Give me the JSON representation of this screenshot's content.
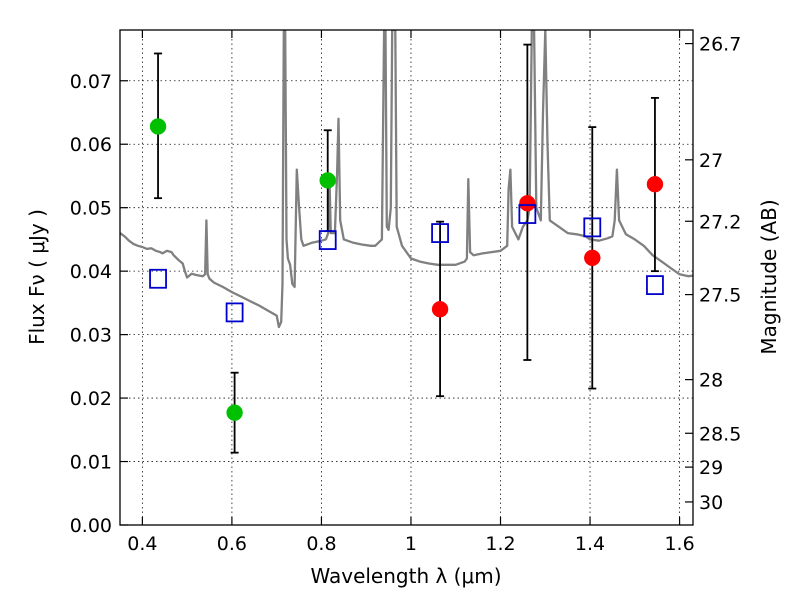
{
  "chart_data": {
    "type": "scatter",
    "xlabel": "Wavelength  λ (μm)",
    "ylabel": "Flux  Fν  ( μJy )",
    "ylabel_right": "Magnitude (AB)",
    "xlim": [
      0.35,
      1.63
    ],
    "ylim": [
      0.0,
      0.078
    ],
    "x_ticks": [
      0.4,
      0.6,
      0.8,
      1.0,
      1.2,
      1.4,
      1.6
    ],
    "x_tick_labels": [
      "0.4",
      "0.6",
      "0.8",
      "1",
      "1.2",
      "1.4",
      "1.6"
    ],
    "y_ticks": [
      0.0,
      0.01,
      0.02,
      0.03,
      0.04,
      0.05,
      0.06,
      0.07
    ],
    "y_tick_labels": [
      "0.00",
      "0.01",
      "0.02",
      "0.03",
      "0.04",
      "0.05",
      "0.06",
      "0.07"
    ],
    "right_ticks": [
      {
        "mag": 26.7,
        "label": "26.7"
      },
      {
        "mag": 27,
        "label": "27"
      },
      {
        "mag": 27.2,
        "label": "27.2"
      },
      {
        "mag": 27.5,
        "label": "27.5"
      },
      {
        "mag": 28,
        "label": "28"
      },
      {
        "mag": 28.5,
        "label": "28.5"
      },
      {
        "mag": 29,
        "label": "29"
      },
      {
        "mag": 30,
        "label": "30"
      }
    ],
    "grid": true,
    "colors": {
      "green_points": "#00c000",
      "red_points": "#ff0000",
      "model_boxes": "#0000cc",
      "spectrum": "#808080",
      "errorbars": "#000000"
    },
    "series": [
      {
        "marker": "circle",
        "color": "green",
        "points": [
          {
            "x": 0.435,
            "y": 0.0628,
            "yerr_low": 0.0515,
            "yerr_high": 0.0743
          },
          {
            "x": 0.606,
            "y": 0.0177,
            "yerr_low": 0.0114,
            "yerr_high": 0.024
          },
          {
            "x": 0.814,
            "y": 0.0543,
            "yerr_low": 0.0463,
            "yerr_high": 0.0622
          }
        ]
      },
      {
        "marker": "circle",
        "color": "red",
        "points": [
          {
            "x": 1.065,
            "y": 0.034,
            "yerr_low": 0.0203,
            "yerr_high": 0.0478
          },
          {
            "x": 1.26,
            "y": 0.0507,
            "yerr_low": 0.026,
            "yerr_high": 0.0757
          },
          {
            "x": 1.405,
            "y": 0.0421,
            "yerr_low": 0.0215,
            "yerr_high": 0.0627
          },
          {
            "x": 1.545,
            "y": 0.0537,
            "yerr_low": 0.04,
            "yerr_high": 0.0673
          }
        ]
      },
      {
        "marker": "open-square",
        "color": "blue",
        "points": [
          {
            "x": 0.435,
            "y": 0.0388
          },
          {
            "x": 0.606,
            "y": 0.0335
          },
          {
            "x": 0.814,
            "y": 0.0449
          },
          {
            "x": 1.065,
            "y": 0.046
          },
          {
            "x": 1.26,
            "y": 0.049
          },
          {
            "x": 1.405,
            "y": 0.0469
          },
          {
            "x": 1.545,
            "y": 0.0378
          }
        ]
      }
    ],
    "spectrum": [
      [
        0.35,
        0.046
      ],
      [
        0.36,
        0.0455
      ],
      [
        0.37,
        0.0448
      ],
      [
        0.38,
        0.0443
      ],
      [
        0.39,
        0.044
      ],
      [
        0.4,
        0.0438
      ],
      [
        0.41,
        0.0435
      ],
      [
        0.42,
        0.0436
      ],
      [
        0.43,
        0.0432
      ],
      [
        0.44,
        0.043
      ],
      [
        0.445,
        0.0428
      ],
      [
        0.455,
        0.0432
      ],
      [
        0.465,
        0.043
      ],
      [
        0.47,
        0.0425
      ],
      [
        0.48,
        0.0418
      ],
      [
        0.49,
        0.0412
      ],
      [
        0.495,
        0.04
      ],
      [
        0.5,
        0.039
      ],
      [
        0.51,
        0.0396
      ],
      [
        0.52,
        0.0394
      ],
      [
        0.535,
        0.0392
      ],
      [
        0.54,
        0.0395
      ],
      [
        0.543,
        0.048
      ],
      [
        0.546,
        0.0395
      ],
      [
        0.55,
        0.0388
      ],
      [
        0.56,
        0.0382
      ],
      [
        0.58,
        0.0375
      ],
      [
        0.6,
        0.0367
      ],
      [
        0.62,
        0.036
      ],
      [
        0.64,
        0.0353
      ],
      [
        0.66,
        0.0346
      ],
      [
        0.68,
        0.0338
      ],
      [
        0.7,
        0.033
      ],
      [
        0.705,
        0.0312
      ],
      [
        0.71,
        0.032
      ],
      [
        0.713,
        0.038
      ],
      [
        0.716,
        0.078
      ],
      [
        0.719,
        0.078
      ],
      [
        0.722,
        0.045
      ],
      [
        0.725,
        0.042
      ],
      [
        0.73,
        0.041
      ],
      [
        0.735,
        0.038
      ],
      [
        0.74,
        0.0375
      ],
      [
        0.745,
        0.056
      ],
      [
        0.75,
        0.05
      ],
      [
        0.755,
        0.045
      ],
      [
        0.76,
        0.044
      ],
      [
        0.78,
        0.0445
      ],
      [
        0.8,
        0.0448
      ],
      [
        0.81,
        0.045
      ],
      [
        0.815,
        0.046
      ],
      [
        0.818,
        0.0545
      ],
      [
        0.821,
        0.046
      ],
      [
        0.83,
        0.046
      ],
      [
        0.835,
        0.0555
      ],
      [
        0.838,
        0.064
      ],
      [
        0.842,
        0.048
      ],
      [
        0.85,
        0.045
      ],
      [
        0.87,
        0.0445
      ],
      [
        0.89,
        0.0442
      ],
      [
        0.91,
        0.044
      ],
      [
        0.92,
        0.044
      ],
      [
        0.935,
        0.045
      ],
      [
        0.94,
        0.078
      ],
      [
        0.943,
        0.078
      ],
      [
        0.946,
        0.047
      ],
      [
        0.95,
        0.0465
      ],
      [
        0.955,
        0.05
      ],
      [
        0.958,
        0.078
      ],
      [
        0.962,
        0.078
      ],
      [
        0.965,
        0.078
      ],
      [
        0.968,
        0.047
      ],
      [
        0.98,
        0.044
      ],
      [
        1.0,
        0.042
      ],
      [
        1.02,
        0.0415
      ],
      [
        1.04,
        0.0412
      ],
      [
        1.06,
        0.041
      ],
      [
        1.08,
        0.041
      ],
      [
        1.1,
        0.041
      ],
      [
        1.12,
        0.0415
      ],
      [
        1.125,
        0.042
      ],
      [
        1.128,
        0.0545
      ],
      [
        1.132,
        0.043
      ],
      [
        1.14,
        0.0425
      ],
      [
        1.16,
        0.0428
      ],
      [
        1.18,
        0.043
      ],
      [
        1.2,
        0.0432
      ],
      [
        1.215,
        0.044
      ],
      [
        1.218,
        0.053
      ],
      [
        1.222,
        0.056
      ],
      [
        1.226,
        0.047
      ],
      [
        1.24,
        0.045
      ],
      [
        1.25,
        0.047
      ],
      [
        1.26,
        0.048
      ],
      [
        1.265,
        0.05
      ],
      [
        1.27,
        0.078
      ],
      [
        1.275,
        0.078
      ],
      [
        1.28,
        0.05
      ],
      [
        1.29,
        0.048
      ],
      [
        1.295,
        0.065
      ],
      [
        1.3,
        0.078
      ],
      [
        1.305,
        0.06
      ],
      [
        1.31,
        0.048
      ],
      [
        1.33,
        0.047
      ],
      [
        1.35,
        0.046
      ],
      [
        1.37,
        0.0458
      ],
      [
        1.39,
        0.0455
      ],
      [
        1.4,
        0.045
      ],
      [
        1.42,
        0.0448
      ],
      [
        1.44,
        0.0452
      ],
      [
        1.45,
        0.0455
      ],
      [
        1.455,
        0.048
      ],
      [
        1.46,
        0.056
      ],
      [
        1.465,
        0.048
      ],
      [
        1.48,
        0.0458
      ],
      [
        1.5,
        0.045
      ],
      [
        1.52,
        0.044
      ],
      [
        1.54,
        0.0425
      ],
      [
        1.56,
        0.0415
      ],
      [
        1.58,
        0.0405
      ],
      [
        1.6,
        0.0395
      ],
      [
        1.62,
        0.0392
      ],
      [
        1.63,
        0.0393
      ]
    ]
  }
}
